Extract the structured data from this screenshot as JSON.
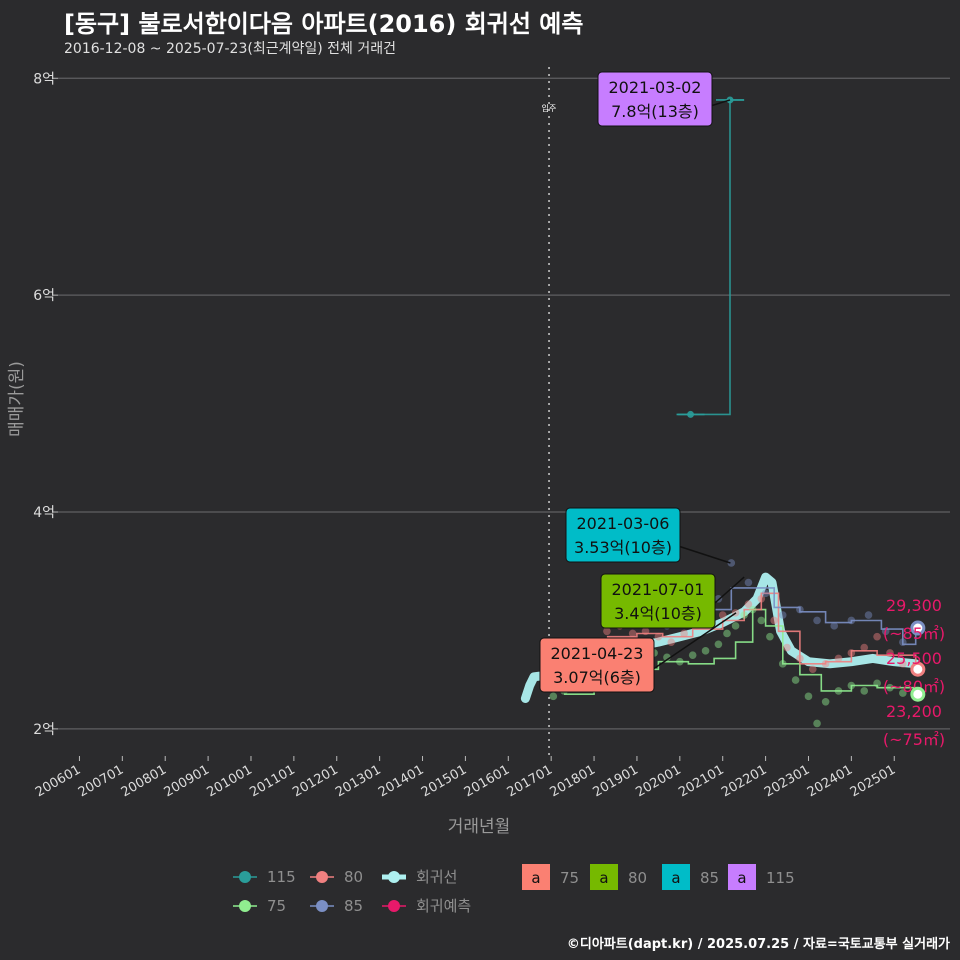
{
  "header": {
    "title": "[동구] 불로서한이다음 아파트(2016) 회귀선 예측",
    "subtitle": "2016-12-08 ~ 2025-07-23(최근계약일) 전체 거래건"
  },
  "caption": "©디아파트(dapt.kr) / 2025.07.25 / 자료=국토교통부 실거래가",
  "chart_data": {
    "type": "scatter",
    "xlabel": "거래년월",
    "ylabel": "매매가(원)",
    "x_ticks": [
      "200601",
      "200701",
      "200801",
      "200901",
      "201001",
      "201101",
      "201201",
      "201301",
      "201401",
      "201501",
      "201601",
      "201701",
      "201801",
      "201901",
      "202001",
      "202101",
      "202201",
      "202301",
      "202401",
      "202501"
    ],
    "y_ticks": [
      {
        "value": 2,
        "label": "2억"
      },
      {
        "value": 4,
        "label": "4억"
      },
      {
        "value": 6,
        "label": "6억"
      },
      {
        "value": 8,
        "label": "8억"
      }
    ],
    "xlim": [
      2005.5,
      2026.3
    ],
    "ylim": [
      1.75,
      8.15
    ],
    "move_in_line": {
      "x": 2016.95,
      "label": "입주"
    },
    "colors": {
      "75": "#90ee90",
      "80": "#f08080",
      "85": "#7b8fc4",
      "115": "#2a9d9a",
      "regression": "#aef0f0",
      "prediction": "#e8196a",
      "label_75": "#fa8072",
      "label_80": "#76b900",
      "label_85": "#00bcc8",
      "label_115": "#c77dff"
    },
    "series": [
      {
        "name": "75",
        "points": [
          [
            2017.05,
            2.3
          ],
          [
            2017.3,
            2.35
          ],
          [
            2017.6,
            2.45
          ],
          [
            2017.9,
            2.55
          ],
          [
            2018.2,
            2.6
          ],
          [
            2018.5,
            2.62
          ],
          [
            2018.8,
            2.58
          ],
          [
            2019.1,
            2.65
          ],
          [
            2019.4,
            2.7
          ],
          [
            2019.7,
            2.66
          ],
          [
            2020.0,
            2.62
          ],
          [
            2020.3,
            2.68
          ],
          [
            2020.6,
            2.72
          ],
          [
            2020.9,
            2.78
          ],
          [
            2021.1,
            2.88
          ],
          [
            2021.3,
            2.95
          ],
          [
            2021.5,
            3.05
          ],
          [
            2021.7,
            3.1
          ],
          [
            2021.9,
            3.0
          ],
          [
            2022.1,
            2.85
          ],
          [
            2022.4,
            2.6
          ],
          [
            2022.7,
            2.45
          ],
          [
            2023.0,
            2.3
          ],
          [
            2023.2,
            2.05
          ],
          [
            2023.4,
            2.25
          ],
          [
            2023.7,
            2.35
          ],
          [
            2024.0,
            2.4
          ],
          [
            2024.3,
            2.35
          ],
          [
            2024.6,
            2.42
          ],
          [
            2024.9,
            2.38
          ],
          [
            2025.2,
            2.33
          ],
          [
            2025.5,
            2.32
          ]
        ]
      },
      {
        "name": "80",
        "points": [
          [
            2018.0,
            2.8
          ],
          [
            2018.3,
            2.9
          ],
          [
            2018.6,
            2.95
          ],
          [
            2018.9,
            2.88
          ],
          [
            2019.2,
            2.9
          ],
          [
            2019.5,
            2.85
          ],
          [
            2019.8,
            2.8
          ],
          [
            2020.1,
            2.88
          ],
          [
            2020.4,
            2.95
          ],
          [
            2020.7,
            3.0
          ],
          [
            2021.0,
            3.05
          ],
          [
            2021.3,
            3.07
          ],
          [
            2021.6,
            3.15
          ],
          [
            2021.9,
            3.2
          ],
          [
            2022.2,
            3.0
          ],
          [
            2022.5,
            2.75
          ],
          [
            2022.8,
            2.65
          ],
          [
            2023.1,
            2.55
          ],
          [
            2023.4,
            2.6
          ],
          [
            2023.7,
            2.65
          ],
          [
            2024.0,
            2.7
          ],
          [
            2024.3,
            2.75
          ],
          [
            2024.6,
            2.85
          ],
          [
            2024.9,
            2.7
          ],
          [
            2025.2,
            2.6
          ],
          [
            2025.5,
            2.55
          ]
        ]
      },
      {
        "name": "85",
        "points": [
          [
            2018.5,
            3.0
          ],
          [
            2018.9,
            3.05
          ],
          [
            2019.3,
            3.0
          ],
          [
            2019.7,
            2.95
          ],
          [
            2020.1,
            3.05
          ],
          [
            2020.5,
            3.1
          ],
          [
            2020.9,
            3.2
          ],
          [
            2021.2,
            3.53
          ],
          [
            2021.6,
            3.35
          ],
          [
            2022.0,
            3.25
          ],
          [
            2022.4,
            3.05
          ],
          [
            2022.8,
            3.1
          ],
          [
            2023.2,
            3.0
          ],
          [
            2023.6,
            2.95
          ],
          [
            2024.0,
            3.0
          ],
          [
            2024.4,
            3.05
          ],
          [
            2024.8,
            2.9
          ],
          [
            2025.2,
            2.8
          ],
          [
            2025.5,
            2.93
          ]
        ]
      },
      {
        "name": "115",
        "points": [
          [
            2020.25,
            4.9
          ],
          [
            2021.17,
            7.8
          ]
        ]
      }
    ],
    "regression": [
      [
        2016.4,
        2.28
      ],
      [
        2016.5,
        2.4
      ],
      [
        2016.6,
        2.48
      ],
      [
        2017.0,
        2.5
      ],
      [
        2017.5,
        2.55
      ],
      [
        2018.0,
        2.62
      ],
      [
        2018.5,
        2.7
      ],
      [
        2019.0,
        2.76
      ],
      [
        2019.5,
        2.8
      ],
      [
        2020.0,
        2.85
      ],
      [
        2020.5,
        2.9
      ],
      [
        2021.0,
        2.98
      ],
      [
        2021.5,
        3.08
      ],
      [
        2021.8,
        3.2
      ],
      [
        2022.0,
        3.4
      ],
      [
        2022.15,
        3.35
      ],
      [
        2022.35,
        2.9
      ],
      [
        2022.6,
        2.72
      ],
      [
        2023.0,
        2.62
      ],
      [
        2023.5,
        2.6
      ],
      [
        2024.0,
        2.62
      ],
      [
        2024.5,
        2.65
      ],
      [
        2025.0,
        2.62
      ],
      [
        2025.5,
        2.6
      ]
    ],
    "step_lines": [
      {
        "name": "75",
        "points": [
          [
            2017.3,
            2.32
          ],
          [
            2018.0,
            2.45
          ],
          [
            2018.8,
            2.55
          ],
          [
            2019.5,
            2.62
          ],
          [
            2020.2,
            2.6
          ],
          [
            2020.8,
            2.65
          ],
          [
            2021.3,
            2.8
          ],
          [
            2021.7,
            3.1
          ],
          [
            2022.0,
            2.95
          ],
          [
            2022.4,
            2.6
          ],
          [
            2022.8,
            2.5
          ],
          [
            2023.3,
            2.35
          ],
          [
            2024.0,
            2.4
          ],
          [
            2024.6,
            2.38
          ],
          [
            2025.5,
            2.32
          ]
        ]
      },
      {
        "name": "80",
        "points": [
          [
            2018.3,
            2.85
          ],
          [
            2019.0,
            2.88
          ],
          [
            2019.6,
            2.85
          ],
          [
            2020.3,
            2.92
          ],
          [
            2021.0,
            3.0
          ],
          [
            2021.5,
            3.1
          ],
          [
            2021.9,
            3.25
          ],
          [
            2022.3,
            2.9
          ],
          [
            2022.8,
            2.6
          ],
          [
            2023.4,
            2.62
          ],
          [
            2024.0,
            2.72
          ],
          [
            2024.6,
            2.68
          ],
          [
            2025.5,
            2.6
          ]
        ]
      },
      {
        "name": "85",
        "points": [
          [
            2018.6,
            3.05
          ],
          [
            2019.3,
            3.02
          ],
          [
            2020.0,
            3.05
          ],
          [
            2020.7,
            3.1
          ],
          [
            2021.2,
            3.3
          ],
          [
            2021.7,
            3.3
          ],
          [
            2022.2,
            3.12
          ],
          [
            2022.8,
            3.08
          ],
          [
            2023.4,
            2.98
          ],
          [
            2024.0,
            3.0
          ],
          [
            2024.7,
            2.92
          ],
          [
            2025.2,
            2.78
          ],
          [
            2025.5,
            2.93
          ]
        ]
      },
      {
        "name": "115",
        "points": [
          [
            2019.95,
            4.9
          ],
          [
            2020.55,
            4.9
          ],
          [
            2021.17,
            7.8
          ],
          [
            2021.5,
            7.8
          ]
        ]
      }
    ],
    "annotations": [
      {
        "series": "115",
        "date": "2021-03-02",
        "text": "7.8억(13층)",
        "x": 2021.17,
        "y": 7.8
      },
      {
        "series": "85",
        "date": "2021-03-06",
        "text": "3.53억(10층)",
        "x": 2021.18,
        "y": 3.53
      },
      {
        "series": "80",
        "date": "2021-07-01",
        "text": "3.4억(10층)",
        "x": 2021.5,
        "y": 3.4
      },
      {
        "series": "75",
        "date": "2021-04-23",
        "text": "3.07억(6층)",
        "x": 2021.31,
        "y": 3.07
      }
    ],
    "predictions": [
      {
        "series": "85",
        "value": "29,300",
        "area": "(~85㎡)",
        "y": 2.93
      },
      {
        "series": "80",
        "value": "25,500",
        "area": "(~80㎡)",
        "y": 2.55
      },
      {
        "series": "75",
        "value": "23,200",
        "area": "(~75㎡)",
        "y": 2.32
      }
    ],
    "legend": {
      "position": "bottom",
      "line_items": [
        {
          "label": "115",
          "series": "115"
        },
        {
          "label": "80",
          "series": "80"
        },
        {
          "label": "회귀선",
          "series": "regression"
        },
        {
          "label": "75",
          "series": "75"
        },
        {
          "label": "85",
          "series": "85"
        },
        {
          "label": "회귀예측",
          "series": "prediction"
        }
      ],
      "label_items": [
        {
          "glyph": "a",
          "label": "75",
          "series": "label_75"
        },
        {
          "glyph": "a",
          "label": "80",
          "series": "label_80"
        },
        {
          "glyph": "a",
          "label": "85",
          "series": "label_85"
        },
        {
          "glyph": "a",
          "label": "115",
          "series": "label_115"
        }
      ]
    }
  }
}
